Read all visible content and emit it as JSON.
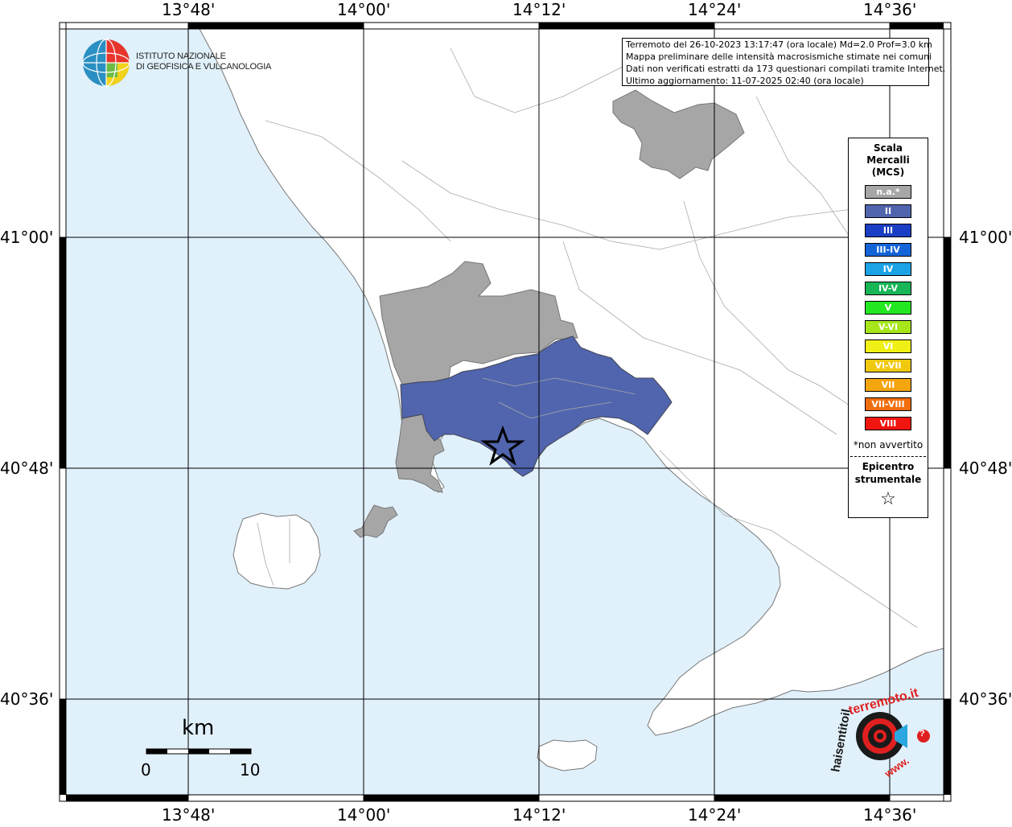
{
  "map": {
    "top_labels": [
      "13°48'",
      "14°00'",
      "14°12'",
      "14°24'",
      "14°36'"
    ],
    "bottom_labels": [
      "13°48'",
      "14°00'",
      "14°12'",
      "14°24'",
      "14°36'"
    ],
    "left_labels": [
      "41°00'",
      "40°48'",
      "40°36'"
    ],
    "right_labels": [
      "41°00'",
      "40°48'",
      "40°36'"
    ],
    "colors": {
      "sea": "#e1f1fb",
      "land": "#ffffff",
      "not_felt": "#a6a6a6",
      "intensity_II": "#5065ad",
      "epicenter": "#000000"
    }
  },
  "logo": {
    "line1": "ISTITUTO NAZIONALE",
    "line2": "DI GEOFISICA E VULCANOLOGIA"
  },
  "info": {
    "line1": "Terremoto del 26-10-2023 13:17:47 (ora locale) Md=2.0 Prof=3.0 km",
    "line2": "Mappa preliminare delle intensità macrosismiche stimate nei comuni",
    "line3": "Dati non verificati estratti da 173 questionari compilati tramite Internet.",
    "line4": "Ultimo aggiornamento: 11-07-2025 02:40 (ora locale)"
  },
  "legend": {
    "title_line1": "Scala",
    "title_line2": "Mercalli",
    "title_line3": "(MCS)",
    "items": [
      {
        "label": "n.a.*",
        "color": "#a6a6a6"
      },
      {
        "label": "II",
        "color": "#5065ad"
      },
      {
        "label": "III",
        "color": "#1a3fc4"
      },
      {
        "label": "III-IV",
        "color": "#1464d8"
      },
      {
        "label": "IV",
        "color": "#1ca3e6"
      },
      {
        "label": "IV-V",
        "color": "#18b657"
      },
      {
        "label": "V",
        "color": "#22e822"
      },
      {
        "label": "V-VI",
        "color": "#a6e61a"
      },
      {
        "label": "VI",
        "color": "#f0f016"
      },
      {
        "label": "VI-VII",
        "color": "#f0c80e"
      },
      {
        "label": "VII",
        "color": "#f5a50e"
      },
      {
        "label": "VII-VIII",
        "color": "#f06e0e"
      },
      {
        "label": "VIII",
        "color": "#f0150e"
      }
    ],
    "note": "*non avvertito",
    "epicenter_line1": "Epicentro",
    "epicenter_line2": "strumentale",
    "star_glyph": "☆"
  },
  "scale_bar": {
    "unit": "km",
    "min": "0",
    "max": "10"
  },
  "brand": {
    "text_black": "haisentitoil",
    "text_red": "terremoto.it",
    "text_www": "www.",
    "question": "?"
  }
}
